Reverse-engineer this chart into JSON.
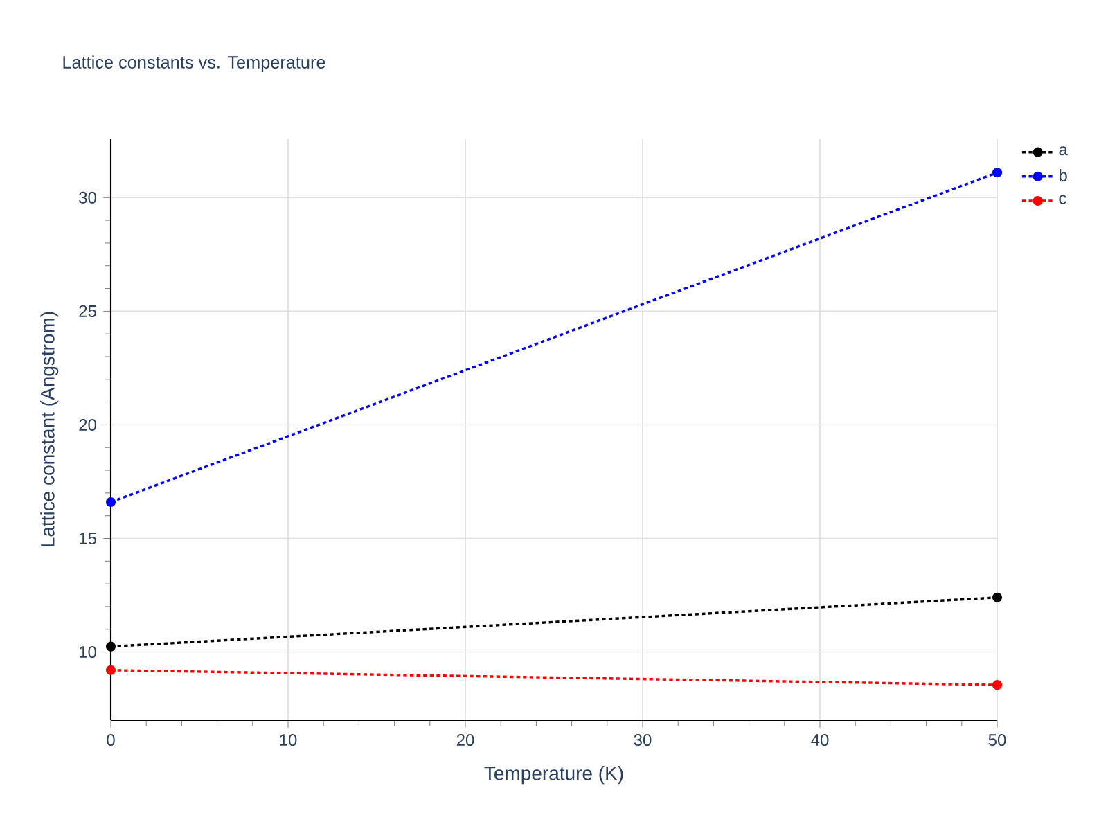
{
  "chart_data": {
    "type": "line",
    "title": "Lattice constants vs. Temperature",
    "xlabel": "Temperature (K)",
    "ylabel": "Lattice constant (Angstrom)",
    "x": [
      0,
      50
    ],
    "series": [
      {
        "name": "a",
        "color": "#000000",
        "values": [
          10.24,
          12.4
        ]
      },
      {
        "name": "b",
        "color": "#0000ff",
        "values": [
          16.6,
          31.1
        ]
      },
      {
        "name": "c",
        "color": "#ff0000",
        "values": [
          9.2,
          8.55
        ]
      }
    ],
    "xlim": [
      0,
      50
    ],
    "ylim": [
      7.0,
      32.6
    ],
    "xticks": [
      0,
      10,
      20,
      30,
      40,
      50
    ],
    "yticks": [
      10,
      15,
      20,
      25,
      30
    ],
    "grid": true,
    "legend": "top right",
    "marker": "circle",
    "line_style": "dotted"
  }
}
